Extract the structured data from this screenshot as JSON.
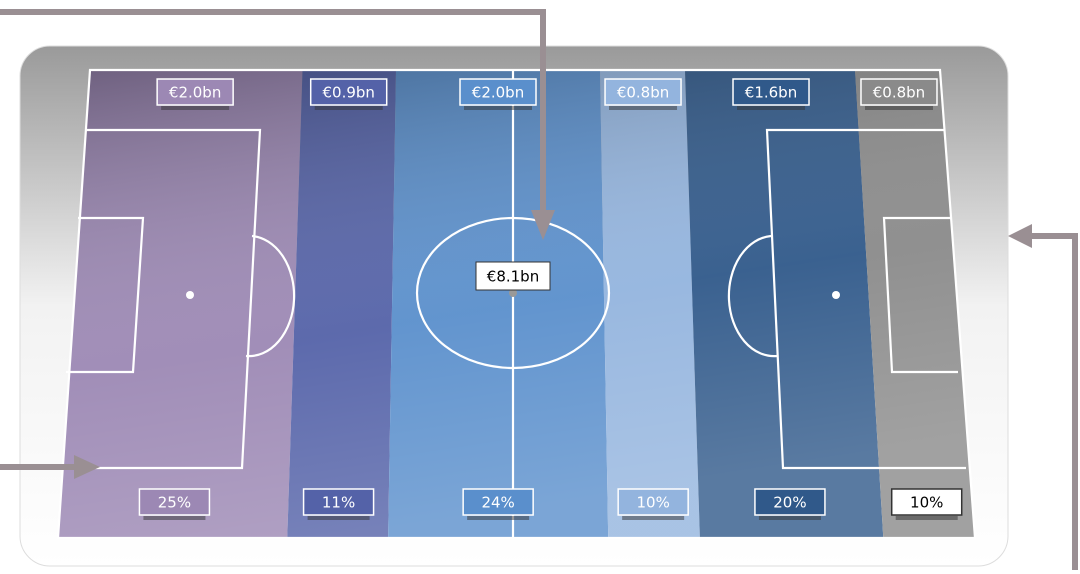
{
  "chart_data": {
    "type": "pitch",
    "total": 8.1,
    "total_label": "€8.1bn",
    "values": [
      2.0,
      0.9,
      2.0,
      0.8,
      1.6,
      0.8
    ],
    "value_labels": [
      "€2.0bn",
      "€0.9bn",
      "€2.0bn",
      "€0.8bn",
      "€1.6bn",
      "€0.8bn"
    ],
    "shares": [
      25,
      11,
      24,
      10,
      20,
      10
    ],
    "share_labels": [
      "25%",
      "11%",
      "24%",
      "10%",
      "20%",
      "10%"
    ],
    "colors": [
      "#9c88b4",
      "#5462a8",
      "#5a8fcc",
      "#93b4de",
      "#30598a",
      "#8a8a8a"
    ]
  }
}
